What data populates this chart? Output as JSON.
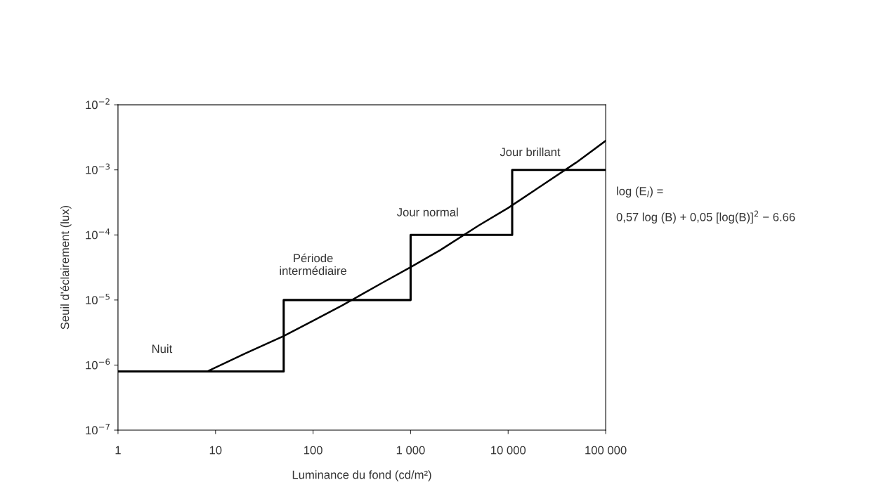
{
  "chart_data": {
    "type": "line",
    "xlabel": "Luminance du fond (cd/m²)",
    "ylabel": "Seuil d'éclairement (lux)",
    "log": "xy",
    "xlim": [
      1,
      100000
    ],
    "xticks": [
      1,
      10,
      100,
      {
        "value": 1000,
        "label": "1 000"
      },
      {
        "value": 10000,
        "label": "10 000"
      },
      {
        "value": 100000,
        "label": "100 000"
      }
    ],
    "ylim": [
      1e-07,
      0.01
    ],
    "yticks": [
      {
        "value": 1e-07,
        "label": "10$^{−7}$"
      },
      {
        "value": 1e-06,
        "label": "10$^{−6}$"
      },
      {
        "value": 1e-05,
        "label": "10$^{−5}$"
      },
      {
        "value": 0.0001,
        "label": "10$^{−4}$"
      },
      {
        "value": 0.001,
        "label": "10$^{−3}$"
      },
      {
        "value": 0.01,
        "label": "10$^{−2}$"
      }
    ],
    "grid": false,
    "marker": "none",
    "line_style": "solid",
    "series": [
      {
        "type": "step",
        "color": "#000000",
        "x": [
          1,
          50,
          1000,
          11000,
          100000
        ],
        "values": [
          8e-07,
          1e-05,
          0.0001,
          0.001,
          0.001
        ]
      },
      {
        "color": "#000000",
        "x": [
          8.4,
          20,
          50,
          100,
          200,
          500,
          1000,
          2000,
          5000,
          10000,
          20000,
          50000,
          100000
        ],
        "values": [
          8.1e-07,
          1.5e-06,
          2.8e-06,
          4.8e-06,
          8.3e-06,
          1.8e-05,
          3.2e-05,
          5.8e-05,
          0.00014,
          0.00026,
          0.00052,
          0.0013,
          0.0028
        ]
      }
    ],
    "annotations": [
      "Nuit",
      "Période\nintermédiaire",
      "Jour normal",
      "Jour brillant",
      "log (E$_{l}$) =",
      "0,57 log (B) + 0,05 [log(B)]$^{2}$ − 6.66"
    ]
  }
}
